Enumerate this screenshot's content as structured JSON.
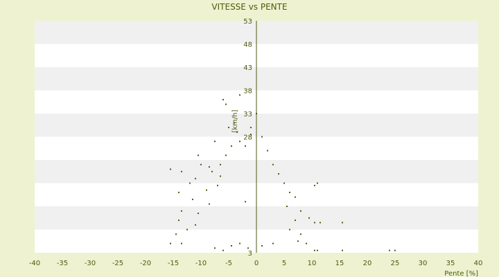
{
  "chart_data": {
    "type": "scatter",
    "title": "VITESSE vs PENTE",
    "xlabel": "Pente [%]",
    "ylabel": "[km/h]",
    "xlim": [
      -40,
      40
    ],
    "ylim": [
      3,
      53
    ],
    "x_ticks": [
      -40,
      -35,
      -30,
      -25,
      -20,
      -15,
      -10,
      -5,
      0,
      5,
      10,
      15,
      20,
      25,
      30,
      35,
      40
    ],
    "y_ticks": [
      3,
      8,
      13,
      18,
      23,
      28,
      33,
      38,
      43,
      48,
      53
    ],
    "y_tick_labels": [
      "3",
      "",
      "",
      "",
      "",
      "28",
      "33",
      "38",
      "43",
      "48",
      "53"
    ],
    "grid": "alternating horizontal bands",
    "legend": "none",
    "colors": {
      "background": "#eef2d0",
      "plot_band_light": "#ffffff",
      "plot_band_dark": "#f0f0f0",
      "points": "#4f5a10",
      "text": "#4f5a10",
      "axis": "#4f5a10"
    },
    "series": [
      {
        "points": [
          [
            -6.0,
            36.0
          ],
          [
            -5.5,
            35.0
          ],
          [
            -3.0,
            37.0
          ],
          [
            -4.0,
            31.0
          ],
          [
            -5.0,
            30.0
          ],
          [
            -3.5,
            29.0
          ],
          [
            -4.5,
            26.0
          ],
          [
            -7.5,
            27.0
          ],
          [
            -6.5,
            22.0
          ],
          [
            -10.5,
            24.0
          ],
          [
            -10.0,
            22.0
          ],
          [
            -15.5,
            21.0
          ],
          [
            -13.5,
            20.5
          ],
          [
            -8.0,
            20.5
          ],
          [
            -11.0,
            19.0
          ],
          [
            -12.0,
            18.0
          ],
          [
            -11.5,
            14.5
          ],
          [
            -14.0,
            16.0
          ],
          [
            -13.5,
            12.0
          ],
          [
            -10.5,
            11.5
          ],
          [
            -11.0,
            9.0
          ],
          [
            -14.0,
            10.0
          ],
          [
            -12.5,
            8.0
          ],
          [
            -14.5,
            7.0
          ],
          [
            -15.5,
            5.0
          ],
          [
            -13.5,
            5.0
          ],
          [
            -7.5,
            4.0
          ],
          [
            -6.0,
            3.5
          ],
          [
            -4.5,
            4.5
          ],
          [
            -2.0,
            14.0
          ],
          [
            7.0,
            15.0
          ],
          [
            8.0,
            12.0
          ],
          [
            9.5,
            10.5
          ],
          [
            10.5,
            9.5
          ],
          [
            11.5,
            9.5
          ],
          [
            10.5,
            17.5
          ],
          [
            11.0,
            18.0
          ],
          [
            15.5,
            9.5
          ],
          [
            10.5,
            3.5
          ],
          [
            11.0,
            3.5
          ],
          [
            15.5,
            3.5
          ],
          [
            24.0,
            3.5
          ],
          [
            25.0,
            3.5
          ],
          [
            0.0,
            33.0
          ],
          [
            1.0,
            28.0
          ],
          [
            -1.0,
            28.5
          ],
          [
            2.0,
            25.0
          ],
          [
            -2.0,
            26.0
          ],
          [
            3.0,
            22.0
          ],
          [
            4.0,
            20.0
          ],
          [
            5.0,
            18.0
          ],
          [
            6.0,
            16.0
          ],
          [
            5.5,
            13.0
          ],
          [
            7.0,
            10.0
          ],
          [
            6.0,
            8.0
          ],
          [
            8.0,
            7.0
          ],
          [
            7.5,
            5.5
          ],
          [
            9.0,
            5.0
          ],
          [
            3.0,
            5.0
          ],
          [
            1.0,
            4.5
          ],
          [
            -1.5,
            4.0
          ],
          [
            -3.0,
            5.0
          ],
          [
            -8.5,
            13.5
          ],
          [
            -9.0,
            16.5
          ],
          [
            -7.0,
            17.5
          ],
          [
            -6.5,
            19.5
          ],
          [
            -8.5,
            21.5
          ],
          [
            -5.5,
            24.0
          ],
          [
            -3.0,
            27.0
          ],
          [
            -1.0,
            30.0
          ]
        ]
      }
    ]
  }
}
